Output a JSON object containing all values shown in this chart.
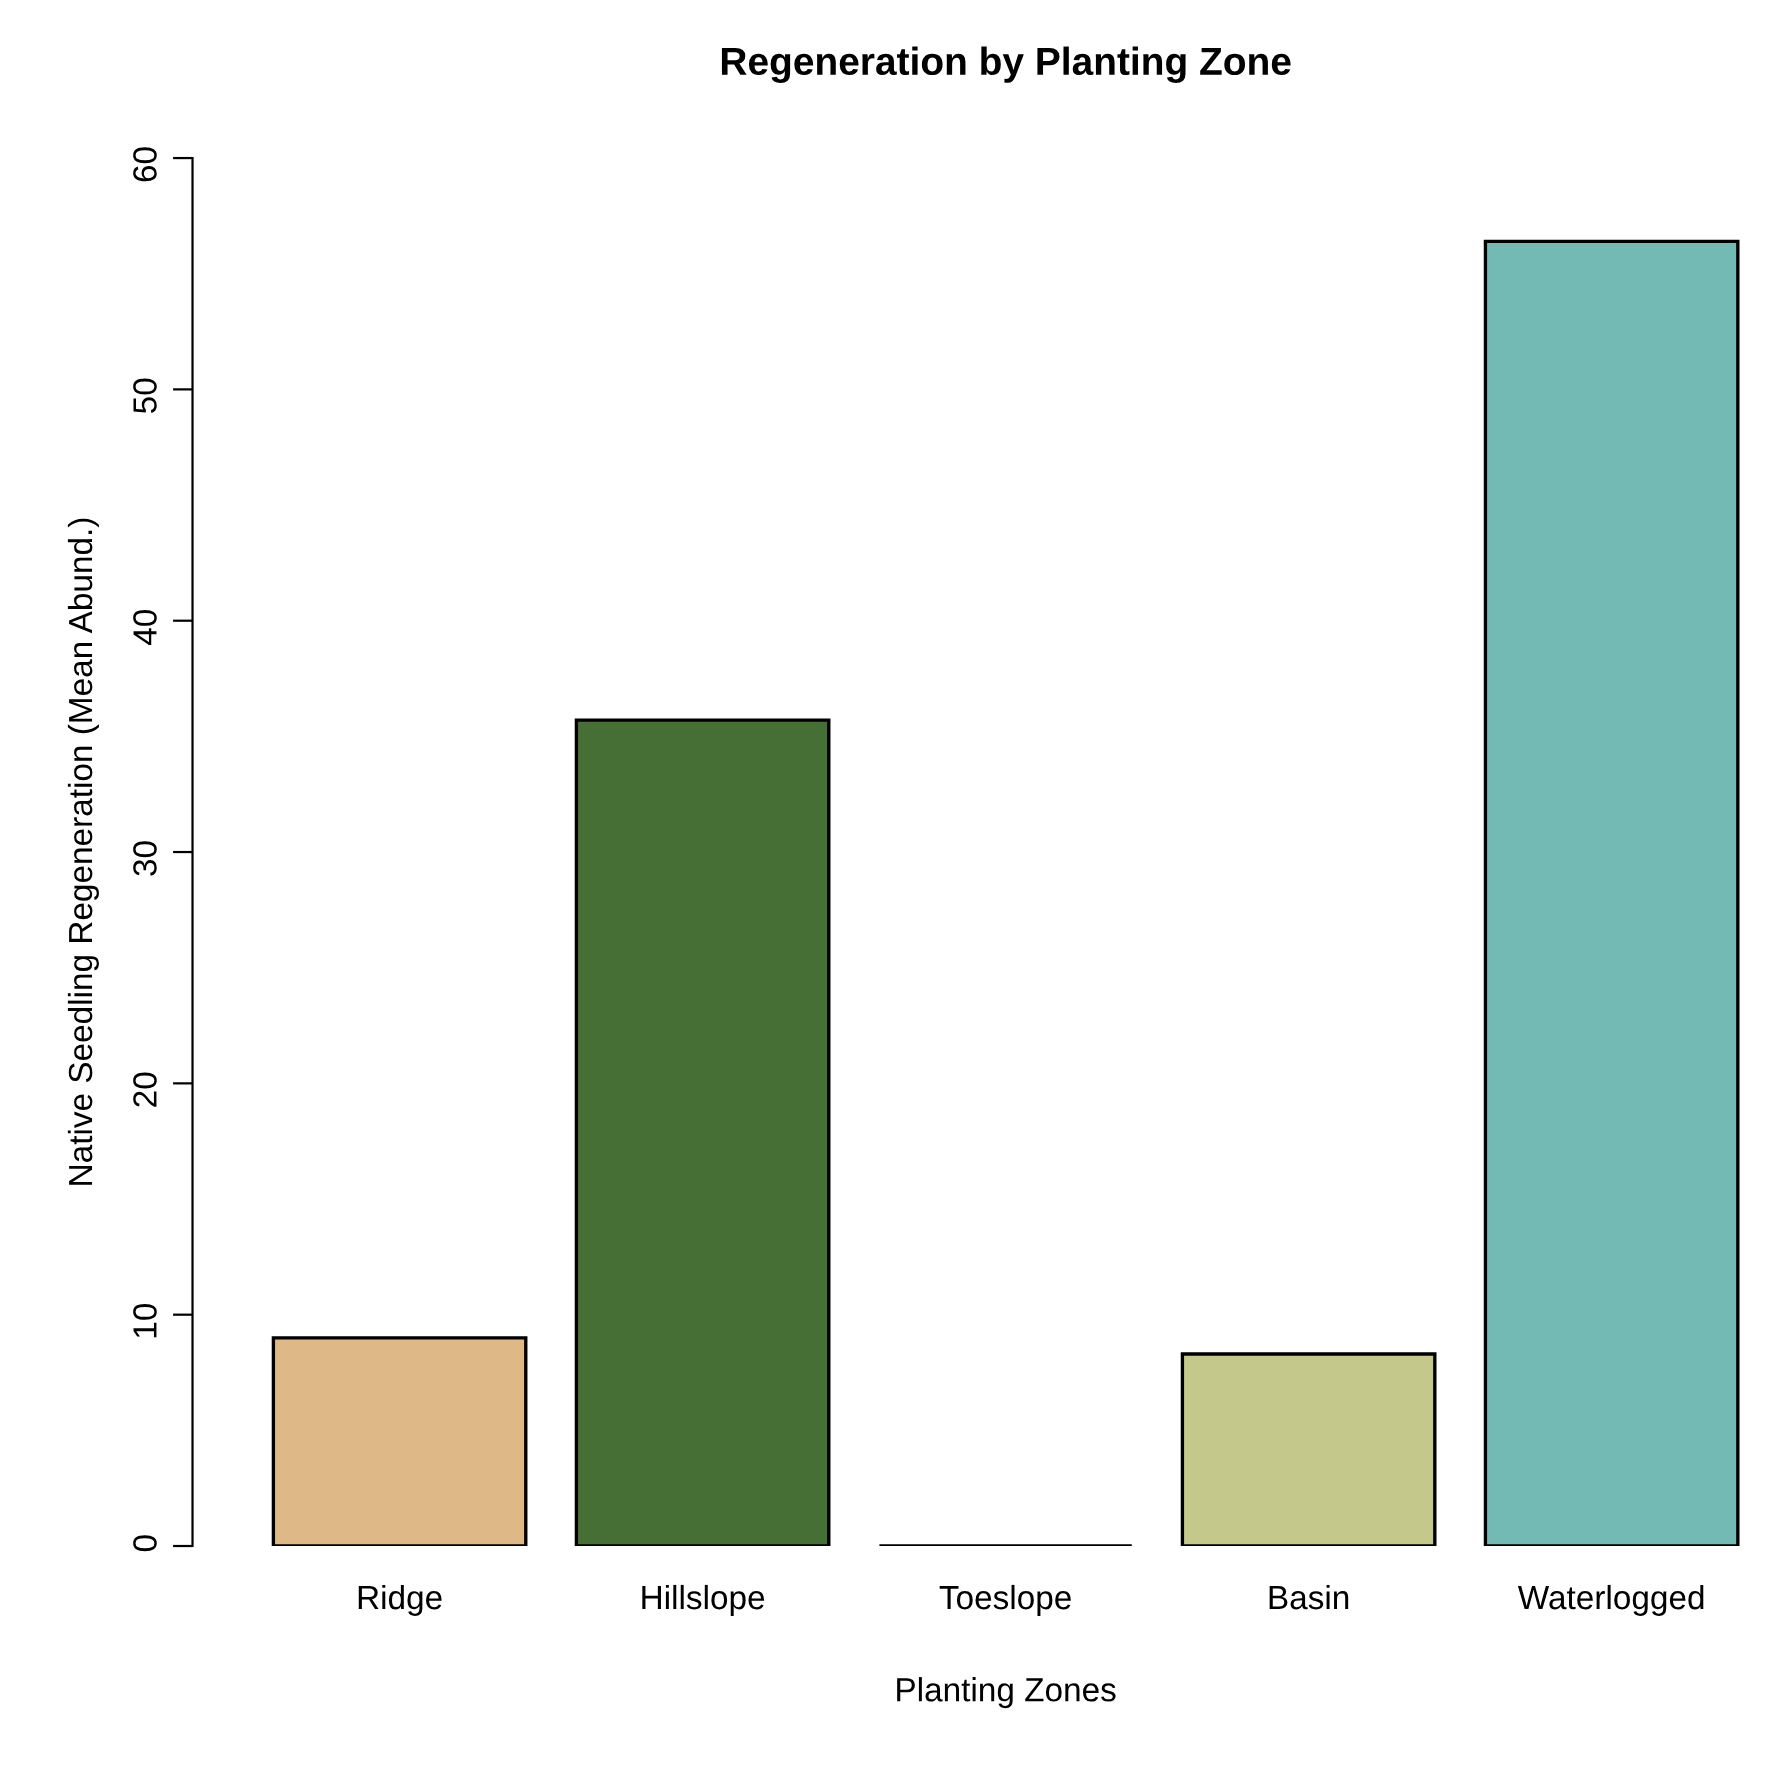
{
  "chart_data": {
    "type": "bar",
    "title": "Regeneration by Planting Zone",
    "xlabel": "Planting Zones",
    "ylabel": "Native Seedling Regeneration (Mean Abund.)",
    "categories": [
      "Ridge",
      "Hillslope",
      "Toeslope",
      "Basin",
      "Waterlogged"
    ],
    "values": [
      9.0,
      35.7,
      0,
      8.3,
      56.4
    ],
    "colors": [
      "#deb887",
      "#466f35",
      "#000000",
      "#c4c98b",
      "#73b9b4"
    ],
    "ylim": [
      0,
      60
    ],
    "yticks": [
      0,
      10,
      20,
      30,
      40,
      50,
      60
    ],
    "grid": false
  }
}
